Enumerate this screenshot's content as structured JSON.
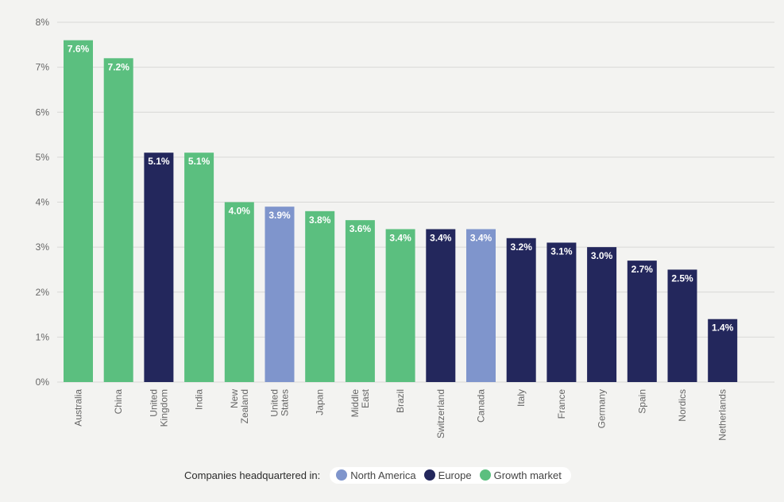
{
  "chart_data": {
    "type": "bar",
    "title": "",
    "xlabel": "",
    "ylabel": "",
    "ylim": [
      0,
      8
    ],
    "yticks": [
      "0%",
      "1%",
      "2%",
      "3%",
      "4%",
      "5%",
      "6%",
      "7%",
      "8%"
    ],
    "grid": true,
    "categories": [
      [
        "Australia"
      ],
      [
        "China"
      ],
      [
        "United",
        "Kingdom"
      ],
      [
        "India"
      ],
      [
        "New",
        "Zealand"
      ],
      [
        "United",
        "States"
      ],
      [
        "Japan"
      ],
      [
        "Middle",
        "East"
      ],
      [
        "Brazil"
      ],
      [
        "Switzerland"
      ],
      [
        "Canada"
      ],
      [
        "Italy"
      ],
      [
        "France"
      ],
      [
        "Germany"
      ],
      [
        "Spain"
      ],
      [
        "Nordics"
      ],
      [
        "Netherlands"
      ]
    ],
    "values": [
      7.6,
      7.2,
      5.1,
      5.1,
      4.0,
      3.9,
      3.8,
      3.6,
      3.4,
      3.4,
      3.4,
      3.2,
      3.1,
      3.0,
      2.7,
      2.5,
      1.4
    ],
    "data_labels": [
      "7.6%",
      "7.2%",
      "5.1%",
      "5.1%",
      "4.0%",
      "3.9%",
      "3.8%",
      "3.6%",
      "3.4%",
      "3.4%",
      "3.4%",
      "3.2%",
      "3.1%",
      "3.0%",
      "2.7%",
      "2.5%",
      "1.4%"
    ],
    "groups": [
      "growth",
      "growth",
      "europe",
      "growth",
      "growth",
      "north_america",
      "growth",
      "growth",
      "growth",
      "europe",
      "north_america",
      "europe",
      "europe",
      "europe",
      "europe",
      "europe",
      "europe"
    ],
    "legend": {
      "title": "Companies headquartered in:",
      "placement": "bottom-center",
      "items": [
        {
          "key": "north_america",
          "label": "North America"
        },
        {
          "key": "europe",
          "label": "Europe"
        },
        {
          "key": "growth",
          "label": "Growth market"
        }
      ]
    }
  },
  "colors": {
    "north_america": "#7f95cc",
    "europe": "#23275c",
    "growth": "#5bbf7f",
    "grid": "#d8d8d6",
    "axis_text": "#666666",
    "label_text": "#ffffff"
  }
}
